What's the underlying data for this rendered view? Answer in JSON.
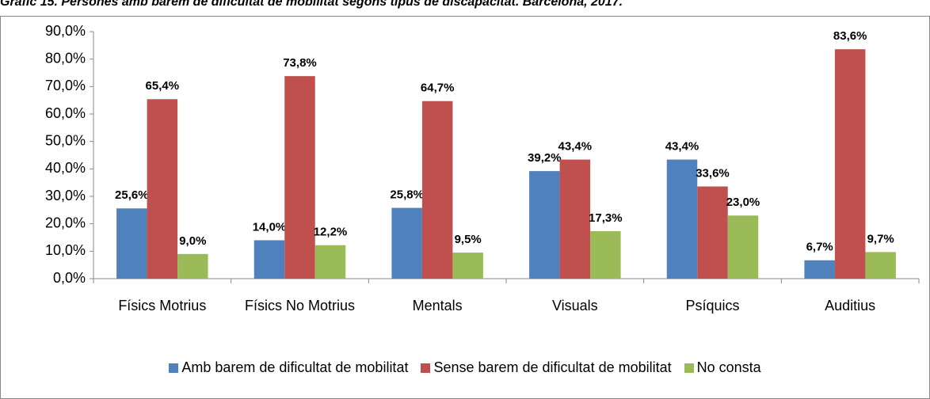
{
  "chart_data": {
    "type": "bar",
    "title": "Gràfic 15. Persones amb barem de dificultat de mobilitat segons tipus de discapacitat. Barcelona, 2017.",
    "categories": [
      "Físics Motrius",
      "Físics No Motrius",
      "Mentals",
      "Visuals",
      "Psíquics",
      "Auditius"
    ],
    "series": [
      {
        "name": "Amb barem de dificultat de mobilitat",
        "color": "#4f81bd",
        "values": [
          25.6,
          14.0,
          25.8,
          39.2,
          43.4,
          6.7
        ],
        "value_labels": [
          "25,6%",
          "14,0%",
          "25,8%",
          "39,2%",
          "43,4%",
          "6,7%"
        ]
      },
      {
        "name": "Sense barem de dificultat de mobilitat",
        "color": "#c0504d",
        "values": [
          65.4,
          73.8,
          64.7,
          43.4,
          33.6,
          83.6
        ],
        "value_labels": [
          "65,4%",
          "73,8%",
          "64,7%",
          "43,4%",
          "33,6%",
          "83,6%"
        ]
      },
      {
        "name": "No consta",
        "color": "#9bbb59",
        "values": [
          9.0,
          12.2,
          9.5,
          17.3,
          23.0,
          9.7
        ],
        "value_labels": [
          "9,0%",
          "12,2%",
          "9,5%",
          "17,3%",
          "23,0%",
          "9,7%"
        ]
      }
    ],
    "ylim": [
      0,
      90
    ],
    "yticks": [
      {
        "value": 0,
        "label": "0,0%"
      },
      {
        "value": 10,
        "label": "10,0%"
      },
      {
        "value": 20,
        "label": "20,0%"
      },
      {
        "value": 30,
        "label": "30,0%"
      },
      {
        "value": 40,
        "label": "40,0%"
      },
      {
        "value": 50,
        "label": "50,0%"
      },
      {
        "value": 60,
        "label": "60,0%"
      },
      {
        "value": 70,
        "label": "70,0%"
      },
      {
        "value": 80,
        "label": "80,0%"
      },
      {
        "value": 90,
        "label": "90,0%"
      }
    ],
    "grid": false,
    "legend": "bottom"
  }
}
